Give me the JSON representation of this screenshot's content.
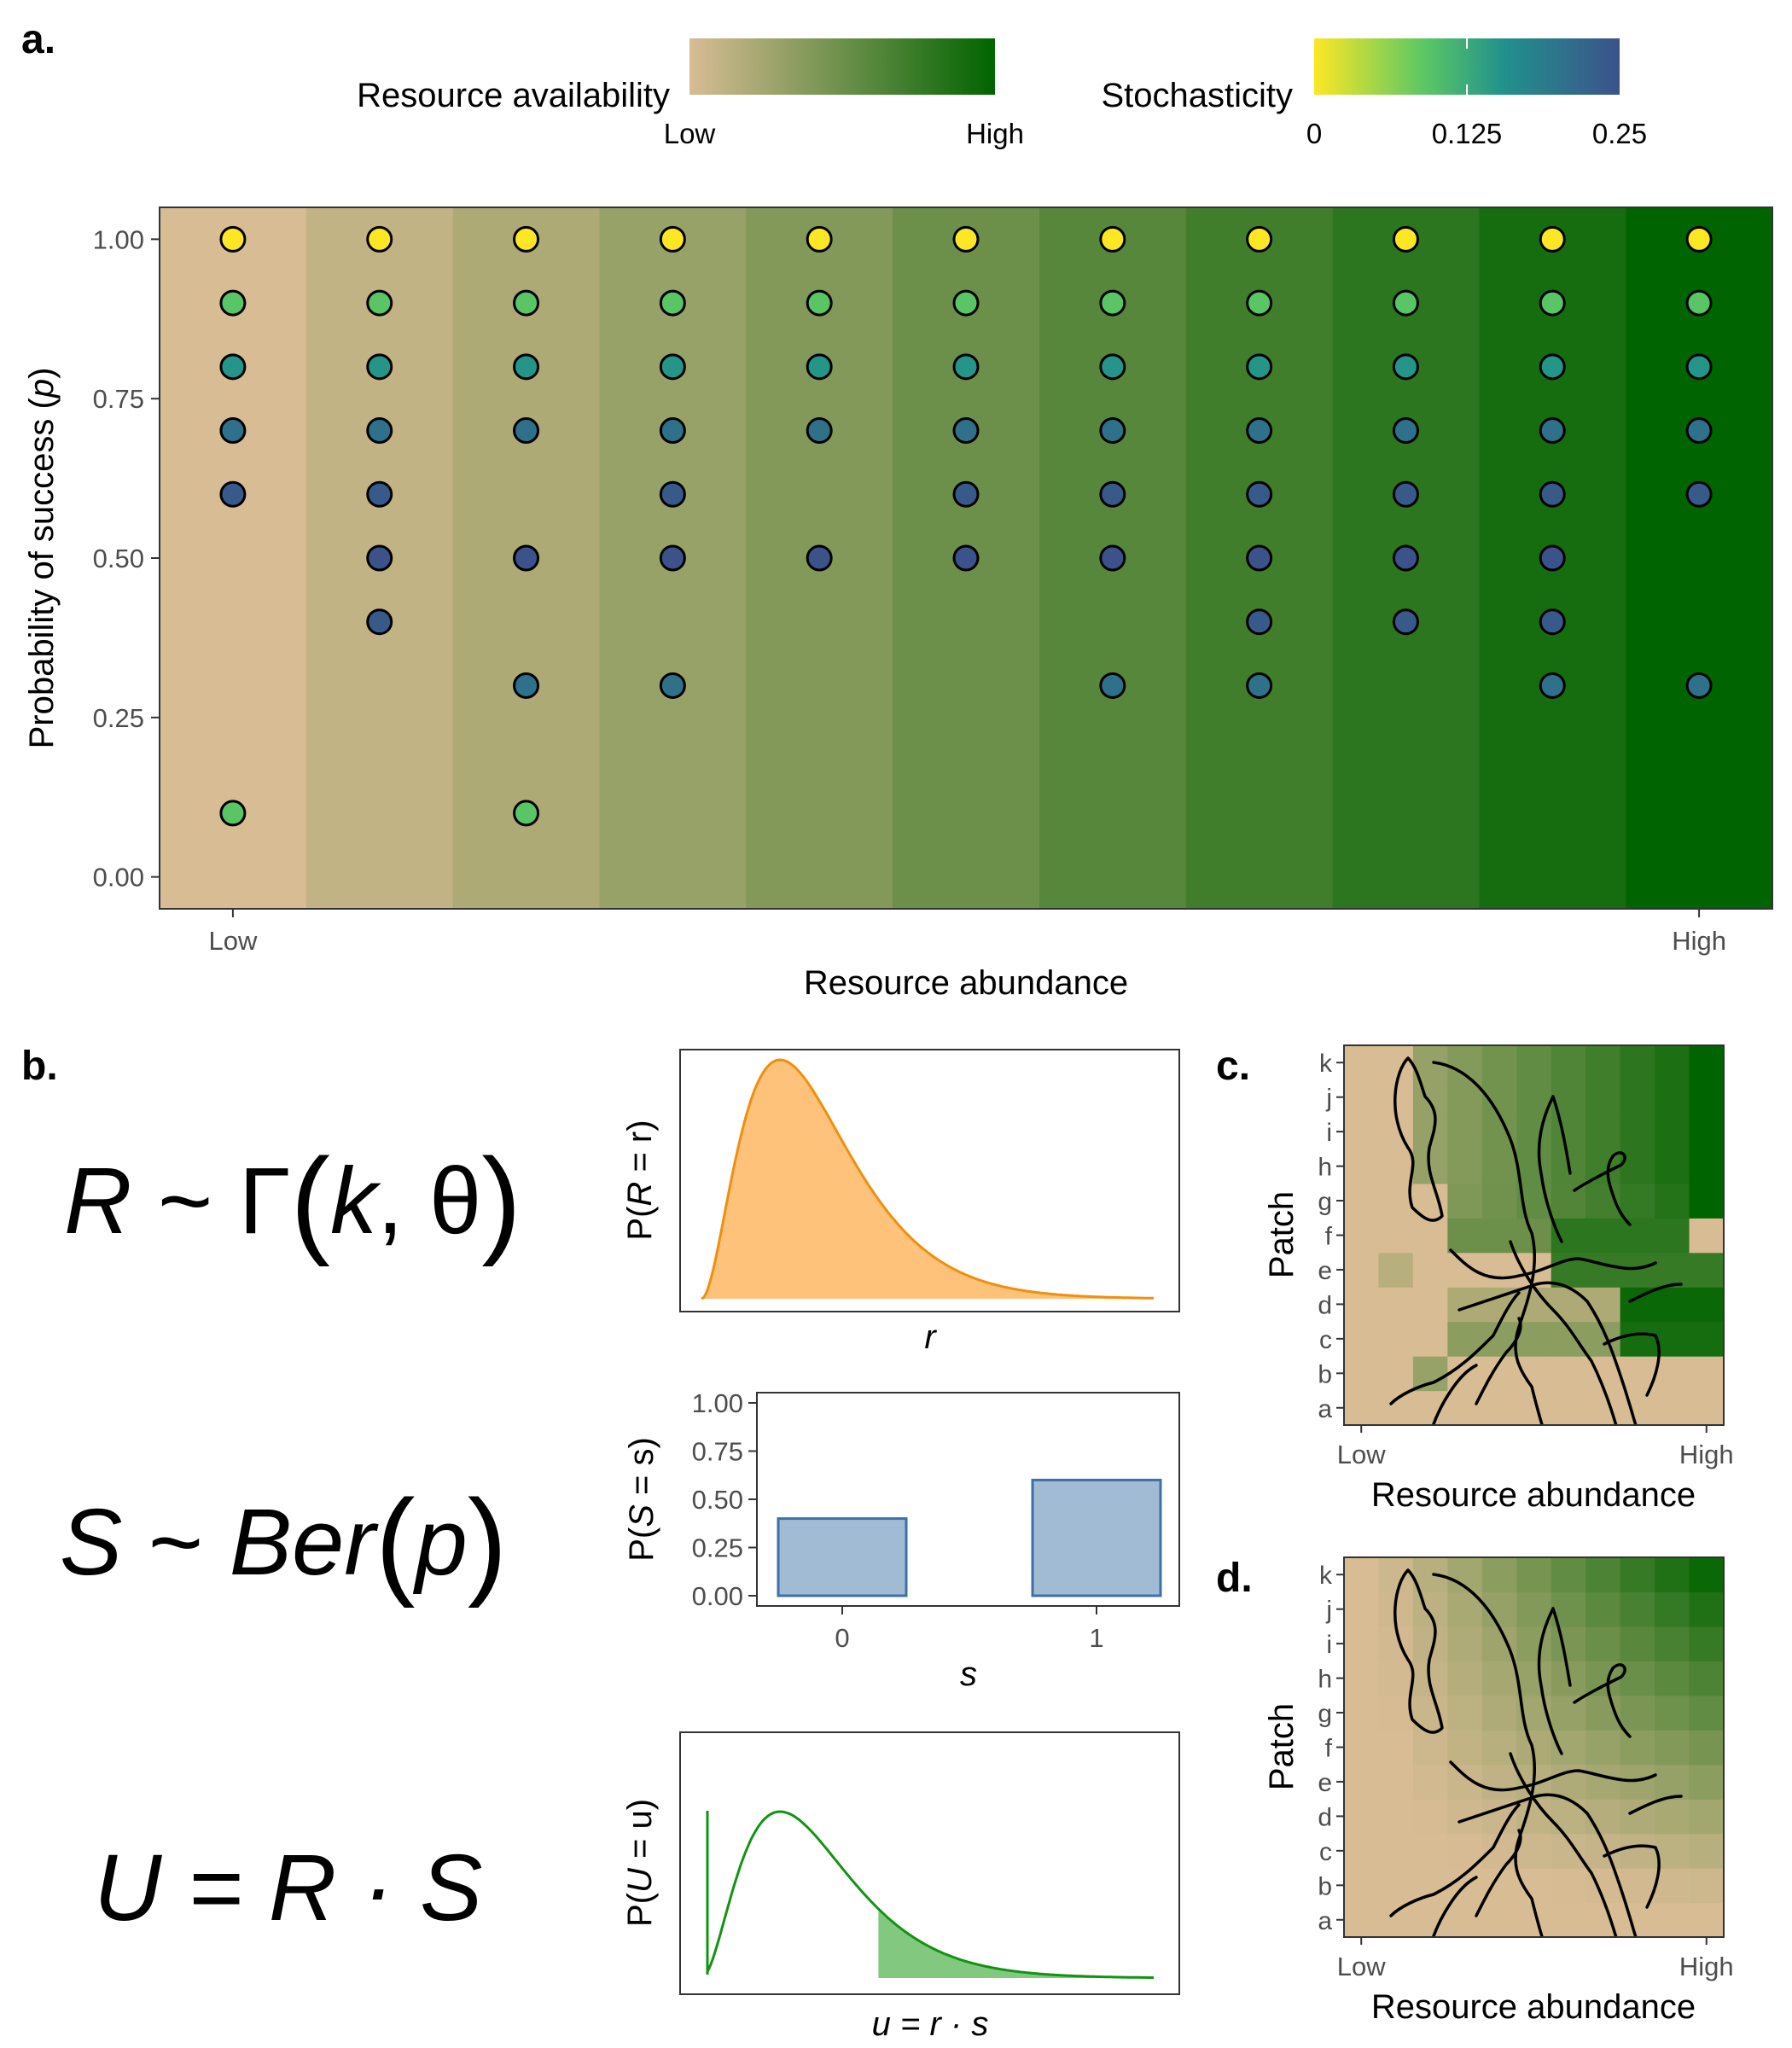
{
  "panels": {
    "a": {
      "letter": "a."
    },
    "b": {
      "letter": "b."
    },
    "c": {
      "letter": "c."
    },
    "d": {
      "letter": "d."
    }
  },
  "legend": {
    "resource": {
      "title": "Resource availability",
      "low": "Low",
      "high": "High",
      "colors": [
        "#D8BC94",
        "#006400"
      ]
    },
    "stochasticity": {
      "title": "Stochasticity",
      "ticks": [
        "0",
        "0.125",
        "0.25"
      ],
      "colors": [
        "#FDE725",
        "#5EC962",
        "#21918C",
        "#3B528B"
      ]
    }
  },
  "chart_data": [
    {
      "panel": "a",
      "type": "scatter",
      "xlabel": "Resource abundance",
      "ylabel": "Probability of success (p)",
      "ylabel_parts": {
        "pre": "Probability of success (",
        "var": "p",
        "post": ")"
      },
      "x_tick_labels": [
        "Low",
        "High"
      ],
      "y_ticks": [
        "0.00",
        "0.25",
        "0.50",
        "0.75",
        "1.00"
      ],
      "ylim": [
        -0.05,
        1.05
      ],
      "n_columns": 11,
      "background_gradient": [
        "#D8BC94",
        "#006400"
      ],
      "grid": false,
      "columns": [
        [
          1.0,
          0.9,
          0.8,
          0.7,
          0.6,
          0.1
        ],
        [
          1.0,
          0.9,
          0.8,
          0.7,
          0.6,
          0.5,
          0.4
        ],
        [
          1.0,
          0.9,
          0.8,
          0.7,
          0.5,
          0.3,
          0.1
        ],
        [
          1.0,
          0.9,
          0.8,
          0.7,
          0.6,
          0.5,
          0.3
        ],
        [
          1.0,
          0.9,
          0.8,
          0.7,
          0.5
        ],
        [
          1.0,
          0.9,
          0.8,
          0.7,
          0.6,
          0.5
        ],
        [
          1.0,
          0.9,
          0.8,
          0.7,
          0.6,
          0.5,
          0.3
        ],
        [
          1.0,
          0.9,
          0.8,
          0.7,
          0.6,
          0.5,
          0.4,
          0.3
        ],
        [
          1.0,
          0.9,
          0.8,
          0.7,
          0.6,
          0.5,
          0.4
        ],
        [
          1.0,
          0.9,
          0.8,
          0.7,
          0.6,
          0.5,
          0.4,
          0.3
        ],
        [
          1.0,
          0.9,
          0.8,
          0.7,
          0.6,
          0.3
        ]
      ],
      "color_by": "stochasticity p(1-p)"
    },
    {
      "panel": "b-gamma",
      "type": "area",
      "xlabel": "r",
      "ylabel": "P(R = r)",
      "ylabel_parts": {
        "pre": "P(",
        "var": "R",
        "post": " = r)"
      },
      "distribution": "gamma",
      "shape_k": 3,
      "fill": "#FEC27B",
      "stroke": "#F28E0C"
    },
    {
      "panel": "b-bernoulli",
      "type": "bar",
      "xlabel": "s",
      "ylabel": "P(S = s)",
      "ylabel_parts": {
        "pre": "P(",
        "var": "S",
        "post": " = s)"
      },
      "categories": [
        "0",
        "1"
      ],
      "values": [
        0.4,
        0.6
      ],
      "y_ticks": [
        "0.00",
        "0.25",
        "0.50",
        "0.75",
        "1.00"
      ],
      "ylim": [
        0,
        1
      ],
      "fill": "#A2BBD5",
      "stroke": "#3D70A6"
    },
    {
      "panel": "b-product",
      "type": "area",
      "xlabel": "u = r · s",
      "ylabel": "P(U = u)",
      "ylabel_parts": {
        "pre": "P(",
        "var": "U",
        "post": " = u)"
      },
      "distribution": "zero-inflated gamma",
      "p_zero": 0.4,
      "fill": "#82C97F",
      "stroke": "#129412"
    },
    {
      "panel": "c",
      "type": "heatmap",
      "xlabel": "Resource abundance",
      "ylabel": "Patch",
      "x_tick_labels": [
        "Low",
        "High"
      ],
      "y_categories": [
        "a",
        "b",
        "c",
        "d",
        "e",
        "f",
        "g",
        "h",
        "i",
        "j",
        "k"
      ],
      "colors": [
        "#D8BC94",
        "#006400"
      ]
    },
    {
      "panel": "d",
      "type": "heatmap",
      "xlabel": "Resource abundance",
      "ylabel": "Patch",
      "x_tick_labels": [
        "Low",
        "High"
      ],
      "y_categories": [
        "a",
        "b",
        "c",
        "d",
        "e",
        "f",
        "g",
        "h",
        "i",
        "j",
        "k"
      ],
      "colors": [
        "#D8BC94",
        "#006400"
      ]
    }
  ],
  "equations": {
    "gamma": {
      "var": "R",
      "op": " ~ Γ",
      "arg1": "k",
      "sep": ", ",
      "arg2": "θ"
    },
    "bernoulli": {
      "var": "S",
      "op": " ~ ",
      "fn": "Ber",
      "arg": "p"
    },
    "product": {
      "text": "U = R · S"
    }
  }
}
